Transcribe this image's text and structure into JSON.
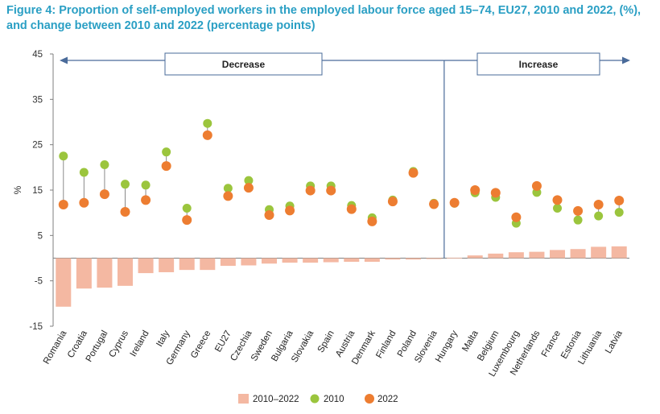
{
  "title": "Figure 4: Proportion of self-employed workers in the employed labour force aged 15–74, EU27, 2010 and 2022, (%), and change between 2010 and 2022 (percentage points)",
  "chart_data": {
    "type": "bar",
    "ylabel": "%",
    "ylim": [
      -15,
      45
    ],
    "yticks": [
      -15,
      -5,
      5,
      15,
      25,
      35,
      45
    ],
    "grid": false,
    "legend_position": "bottom",
    "regions": {
      "decrease_label": "Decrease",
      "increase_label": "Increase"
    },
    "categories": [
      "Romania",
      "Croatia",
      "Portugal",
      "Cyprus",
      "Ireland",
      "Italy",
      "Germany",
      "Greece",
      "EU27",
      "Czechia",
      "Sweden",
      "Bulgaria",
      "Slovakia",
      "Spain",
      "Austria",
      "Denmark",
      "Finland",
      "Poland",
      "Slovenia",
      "Hungary",
      "Malta",
      "Belgium",
      "Luxembourg",
      "Netherlands",
      "France",
      "Estonia",
      "Lithuania",
      "Latvia"
    ],
    "series": [
      {
        "name": "2010–2022",
        "kind": "bar",
        "color": "#f4b8a2",
        "values": [
          -10.7,
          -6.7,
          -6.5,
          -6.1,
          -3.3,
          -3.1,
          -2.6,
          -2.6,
          -1.7,
          -1.6,
          -1.2,
          -1.0,
          -1.0,
          -0.9,
          -0.8,
          -0.8,
          -0.3,
          -0.3,
          -0.2,
          0.1,
          0.6,
          1.0,
          1.3,
          1.4,
          1.8,
          2.0,
          2.5,
          2.6
        ]
      },
      {
        "name": "2010",
        "kind": "point",
        "color": "#9bc53d",
        "values": [
          22.5,
          18.9,
          20.6,
          16.3,
          16.1,
          23.4,
          11.0,
          29.7,
          15.4,
          17.1,
          10.7,
          11.5,
          15.9,
          15.9,
          11.6,
          8.9,
          12.8,
          19.1,
          12.1,
          12.1,
          14.4,
          13.4,
          7.7,
          14.5,
          11.0,
          8.4,
          9.3,
          10.1
        ]
      },
      {
        "name": "2022",
        "kind": "point",
        "color": "#ed7d31",
        "values": [
          11.8,
          12.2,
          14.1,
          10.2,
          12.8,
          20.3,
          8.4,
          27.1,
          13.7,
          15.5,
          9.5,
          10.5,
          14.9,
          14.9,
          10.8,
          8.1,
          12.5,
          18.8,
          11.9,
          12.2,
          15.0,
          14.4,
          9.0,
          15.9,
          12.8,
          10.4,
          11.8,
          12.7
        ]
      }
    ]
  }
}
